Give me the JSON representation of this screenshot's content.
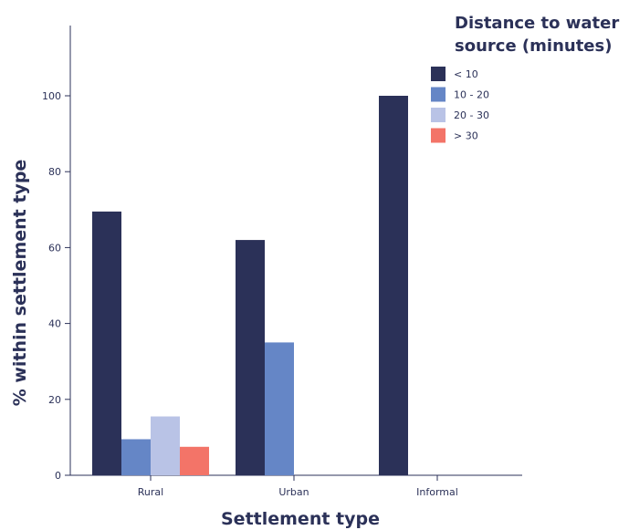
{
  "chart_data": {
    "type": "bar",
    "categories": [
      "Rural",
      "Urban",
      "Informal"
    ],
    "series": [
      {
        "name": "< 10",
        "color": "#2b3158",
        "values": [
          69.5,
          62,
          100
        ]
      },
      {
        "name": "10 - 20",
        "color": "#6586c6",
        "values": [
          9.5,
          35,
          0
        ]
      },
      {
        "name": "20 - 30",
        "color": "#b9c3e6",
        "values": [
          15.5,
          0,
          0
        ]
      },
      {
        "name": "> 30",
        "color": "#f37468",
        "values": [
          7.5,
          0,
          0
        ]
      }
    ],
    "xlabel": "Settlement type",
    "ylabel": "% within settlement type",
    "ylim": [
      0,
      118
    ],
    "yticks": [
      0,
      20,
      40,
      60,
      80,
      100
    ],
    "legend": {
      "title_lines": [
        "Distance to water",
        "source (minutes)"
      ],
      "placement": "top-right"
    },
    "grid": false
  }
}
